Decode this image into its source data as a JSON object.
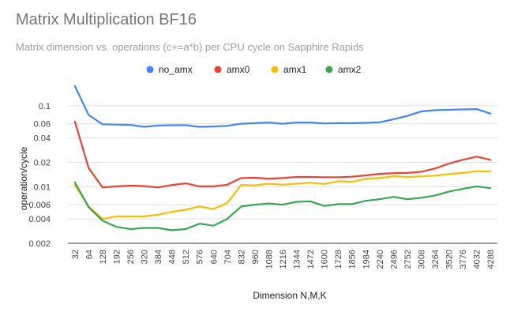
{
  "chart_data": {
    "type": "line",
    "title": "Matrix Multiplication BF16",
    "subtitle": "Matrix dimension vs. operations (c+=a*b) per CPU cycle on Sapphire Rapids",
    "xlabel": "Dimension N,M,K",
    "ylabel": "operation/cycle",
    "yscale": "log",
    "ylim": [
      0.002,
      0.2
    ],
    "yticks": [
      0.002,
      0.004,
      0.006,
      0.01,
      0.02,
      0.04,
      0.06,
      0.1
    ],
    "ytick_labels": [
      "0.002",
      "0.004",
      "0.006",
      "0.01",
      "0.02",
      "0.04",
      "0.06",
      "0.1"
    ],
    "grid": true,
    "legend_position": "top",
    "categories": [
      "32",
      "64",
      "128",
      "192",
      "256",
      "320",
      "384",
      "448",
      "512",
      "576",
      "640",
      "704",
      "832",
      "960",
      "1088",
      "1216",
      "1344",
      "1472",
      "1600",
      "1728",
      "1856",
      "1984",
      "2240",
      "2496",
      "2752",
      "3008",
      "3264",
      "3520",
      "3776",
      "4032",
      "4288"
    ],
    "series": [
      {
        "name": "no_amx",
        "color": "#4285f4",
        "values": [
          0.175,
          0.077,
          0.059,
          0.0585,
          0.058,
          0.055,
          0.057,
          0.0575,
          0.0575,
          0.055,
          0.0555,
          0.0565,
          0.06,
          0.061,
          0.062,
          0.06,
          0.062,
          0.062,
          0.0605,
          0.061,
          0.061,
          0.0615,
          0.0625,
          0.068,
          0.075,
          0.085,
          0.088,
          0.089,
          0.09,
          0.091,
          0.08
        ]
      },
      {
        "name": "amx0",
        "color": "#ea4335",
        "values": [
          0.064,
          0.017,
          0.0098,
          0.0101,
          0.0103,
          0.0102,
          0.0098,
          0.0105,
          0.011,
          0.0101,
          0.0101,
          0.0106,
          0.0128,
          0.0129,
          0.0126,
          0.0128,
          0.0132,
          0.0132,
          0.0131,
          0.0131,
          0.0133,
          0.0138,
          0.0144,
          0.0147,
          0.0148,
          0.0153,
          0.0168,
          0.0193,
          0.0215,
          0.0235,
          0.0215
        ]
      },
      {
        "name": "amx1",
        "color": "#fbbc04",
        "values": [
          0.0105,
          0.0057,
          0.004,
          0.0043,
          0.0043,
          0.0043,
          0.0045,
          0.0049,
          0.0052,
          0.0057,
          0.0053,
          0.0063,
          0.0105,
          0.0104,
          0.0109,
          0.0106,
          0.0109,
          0.0112,
          0.0108,
          0.0117,
          0.0115,
          0.0125,
          0.0128,
          0.0135,
          0.0132,
          0.0134,
          0.0137,
          0.0143,
          0.0148,
          0.0155,
          0.0154
        ]
      },
      {
        "name": "amx2",
        "color": "#34a853",
        "values": [
          0.0113,
          0.0056,
          0.0038,
          0.0032,
          0.003,
          0.0031,
          0.0031,
          0.0029,
          0.003,
          0.0035,
          0.0033,
          0.004,
          0.0057,
          0.006,
          0.0062,
          0.006,
          0.0065,
          0.0066,
          0.0058,
          0.0061,
          0.0061,
          0.0067,
          0.007,
          0.0075,
          0.007,
          0.0073,
          0.0078,
          0.0087,
          0.0094,
          0.0101,
          0.0096
        ]
      }
    ]
  }
}
